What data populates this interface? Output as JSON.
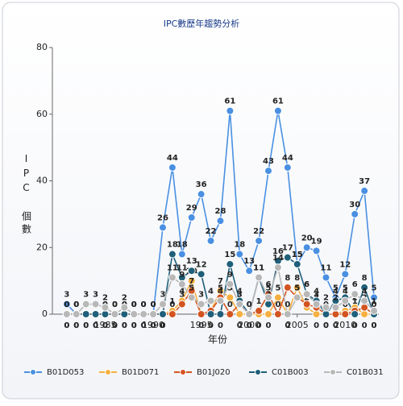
{
  "chart_data": {
    "type": "line",
    "title": "IPC數歷年趨勢分析",
    "x_label": "年份",
    "y_label": "IPC 個數",
    "x": [
      1981,
      1982,
      1983,
      1984,
      1985,
      1986,
      1987,
      1988,
      1989,
      1990,
      1991,
      1992,
      1993,
      1994,
      1995,
      1996,
      1997,
      1998,
      1999,
      2000,
      2001,
      2002,
      2003,
      2004,
      2005,
      2006,
      2007,
      2008,
      2009,
      2010,
      2011,
      2012,
      2013
    ],
    "xlim": [
      1979.5,
      2013.5
    ],
    "xticks": [
      1985,
      1990,
      1995,
      2000,
      2005,
      2010
    ],
    "ylim": [
      0,
      80
    ],
    "yticks": [
      0,
      20,
      40,
      60,
      80
    ],
    "legend": "bottom",
    "series": [
      {
        "name": "B01D053",
        "color": "#4a90e2",
        "values": [
          3,
          0,
          0,
          0,
          0,
          0,
          0,
          0,
          0,
          0,
          26,
          44,
          18,
          29,
          36,
          22,
          28,
          61,
          18,
          13,
          22,
          43,
          61,
          44,
          15,
          20,
          19,
          11,
          5,
          12,
          30,
          37,
          5
        ]
      },
      {
        "name": "B01D071",
        "color": "#f5b041",
        "values": [
          0,
          0,
          0,
          0,
          0,
          0,
          0,
          0,
          0,
          0,
          0,
          1,
          4,
          10,
          0,
          1,
          7,
          5,
          0,
          0,
          0,
          0,
          5,
          0,
          8,
          2,
          0,
          0,
          0,
          1,
          2,
          0,
          0
        ]
      },
      {
        "name": "B01J020",
        "color": "#d35420",
        "values": [
          0,
          0,
          0,
          0,
          0,
          0,
          0,
          0,
          0,
          0,
          0,
          0,
          3,
          7,
          0,
          1,
          5,
          0,
          3,
          0,
          1,
          6,
          0,
          8,
          5,
          3,
          2,
          0,
          0,
          0,
          1,
          2,
          0
        ]
      },
      {
        "name": "C01B003",
        "color": "#1f5f7a",
        "values": [
          0,
          0,
          0,
          0,
          0,
          0,
          0,
          0,
          0,
          0,
          0,
          18,
          11,
          13,
          12,
          0,
          0,
          15,
          4,
          0,
          11,
          3,
          16,
          17,
          15,
          6,
          4,
          0,
          4,
          5,
          0,
          8,
          0
        ]
      },
      {
        "name": "C01B031",
        "color": "#b8b8b8",
        "values": [
          0,
          0,
          3,
          3,
          2,
          0,
          2,
          0,
          0,
          0,
          3,
          11,
          9,
          5,
          3,
          4,
          4,
          9,
          3,
          0,
          11,
          5,
          14,
          0,
          5,
          6,
          3,
          2,
          2,
          4,
          6,
          4,
          1
        ]
      }
    ]
  }
}
